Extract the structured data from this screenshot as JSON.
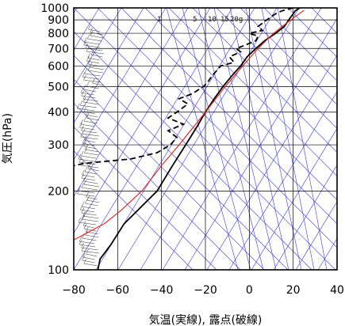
{
  "chart_data": {
    "type": "line",
    "xlabel": "気温(実線), 露点(破線)",
    "ylabel": "気圧(hPa)",
    "xlim": [
      -80,
      40
    ],
    "ylim_pressure": [
      1000,
      100
    ],
    "y_scale": "log",
    "xticks": [
      "−80",
      "−60",
      "−40",
      "−20",
      "0",
      "20",
      "40"
    ],
    "yticks": [
      "100",
      "200",
      "300",
      "400",
      "500",
      "600",
      "700",
      "800",
      "900",
      "1000"
    ],
    "mixing_ratio_labels": [
      "1",
      "5",
      "10",
      "15",
      "20g"
    ],
    "grid": true,
    "colors": {
      "temperature": "#000000",
      "dewpoint": "#000000",
      "parcel": "#e0201e",
      "grid_lines": "#3b3bd6",
      "horizontal_grid": "#000000"
    },
    "series": [
      {
        "key": "temperature",
        "style": "solid",
        "points": [
          [
            1000,
            23
          ],
          [
            975,
            21
          ],
          [
            950,
            20
          ],
          [
            925,
            19
          ],
          [
            900,
            18
          ],
          [
            850,
            16
          ],
          [
            800,
            12
          ],
          [
            750,
            7
          ],
          [
            700,
            3
          ],
          [
            650,
            -1
          ],
          [
            600,
            -4
          ],
          [
            550,
            -8
          ],
          [
            500,
            -12
          ],
          [
            450,
            -16
          ],
          [
            400,
            -20
          ],
          [
            350,
            -24
          ],
          [
            300,
            -29
          ],
          [
            250,
            -35
          ],
          [
            200,
            -42
          ],
          [
            175,
            -49
          ],
          [
            150,
            -57
          ],
          [
            125,
            -63
          ],
          [
            110,
            -68
          ],
          [
            100,
            -69
          ]
        ]
      },
      {
        "key": "dewpoint",
        "style": "dashed",
        "points": [
          [
            1000,
            20
          ],
          [
            975,
            15
          ],
          [
            950,
            12
          ],
          [
            900,
            8
          ],
          [
            850,
            4
          ],
          [
            820,
            6
          ],
          [
            800,
            0
          ],
          [
            780,
            4
          ],
          [
            750,
            3
          ],
          [
            720,
            -2
          ],
          [
            700,
            -6
          ],
          [
            680,
            -4
          ],
          [
            650,
            -9
          ],
          [
            620,
            -7
          ],
          [
            600,
            -13
          ],
          [
            550,
            -17
          ],
          [
            520,
            -19
          ],
          [
            500,
            -21
          ],
          [
            470,
            -26
          ],
          [
            450,
            -32
          ],
          [
            430,
            -28
          ],
          [
            400,
            -33
          ],
          [
            380,
            -37
          ],
          [
            360,
            -30
          ],
          [
            340,
            -37
          ],
          [
            320,
            -33
          ],
          [
            300,
            -36
          ],
          [
            280,
            -42
          ],
          [
            265,
            -54
          ],
          [
            255,
            -75
          ],
          [
            250,
            -80
          ]
        ]
      },
      {
        "key": "parcel",
        "style": "solid",
        "points": [
          [
            980,
            25
          ],
          [
            900,
            19
          ],
          [
            850,
            15
          ],
          [
            800,
            11
          ],
          [
            700,
            4
          ],
          [
            600,
            -3
          ],
          [
            500,
            -11
          ],
          [
            400,
            -20
          ],
          [
            300,
            -32
          ],
          [
            250,
            -40
          ],
          [
            200,
            -49
          ],
          [
            170,
            -58
          ],
          [
            150,
            -66
          ],
          [
            130,
            -80
          ]
        ]
      }
    ],
    "wind_barbs_left": "wind barbs plotted along the left edge from 1000 to 100 hPa"
  }
}
